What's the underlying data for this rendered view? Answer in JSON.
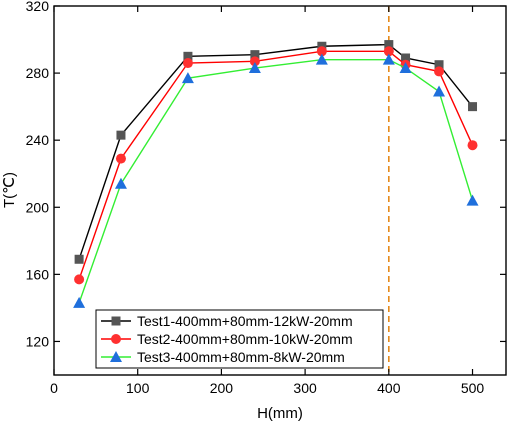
{
  "chart_data": {
    "type": "line",
    "xlabel": "H(mm)",
    "ylabel": "T(℃)",
    "xlim": [
      0,
      540
    ],
    "ylim": [
      100,
      320
    ],
    "xticks": [
      0,
      100,
      200,
      300,
      400,
      500
    ],
    "yticks": [
      120,
      160,
      200,
      240,
      280,
      320
    ],
    "x": [
      30,
      80,
      160,
      240,
      320,
      400,
      420,
      460,
      500
    ],
    "series": [
      {
        "name": "Test1-400mm+80mm-12kW-20mm",
        "color": "#000000",
        "marker_color": "#555555",
        "marker": "square",
        "values": [
          169,
          243,
          290,
          291,
          296,
          297,
          289,
          285,
          260
        ]
      },
      {
        "name": "Test2-400mm+80mm-10kW-20mm",
        "color": "#ff0000",
        "marker_color": "#ff3030",
        "marker": "circle",
        "values": [
          157,
          229,
          286,
          287,
          293,
          293,
          285,
          281,
          237
        ]
      },
      {
        "name": "Test3-400mm+80mm-8kW-20mm",
        "color": "#33ee33",
        "marker_color": "#1f6fdc",
        "marker": "triangle",
        "values": [
          143,
          214,
          277,
          283,
          288,
          288,
          283,
          269,
          204
        ]
      }
    ],
    "reference_line": {
      "x": 400,
      "color": "#e68a1a",
      "style": "dashed"
    },
    "grid": false,
    "legend_position": "bottom-left"
  }
}
